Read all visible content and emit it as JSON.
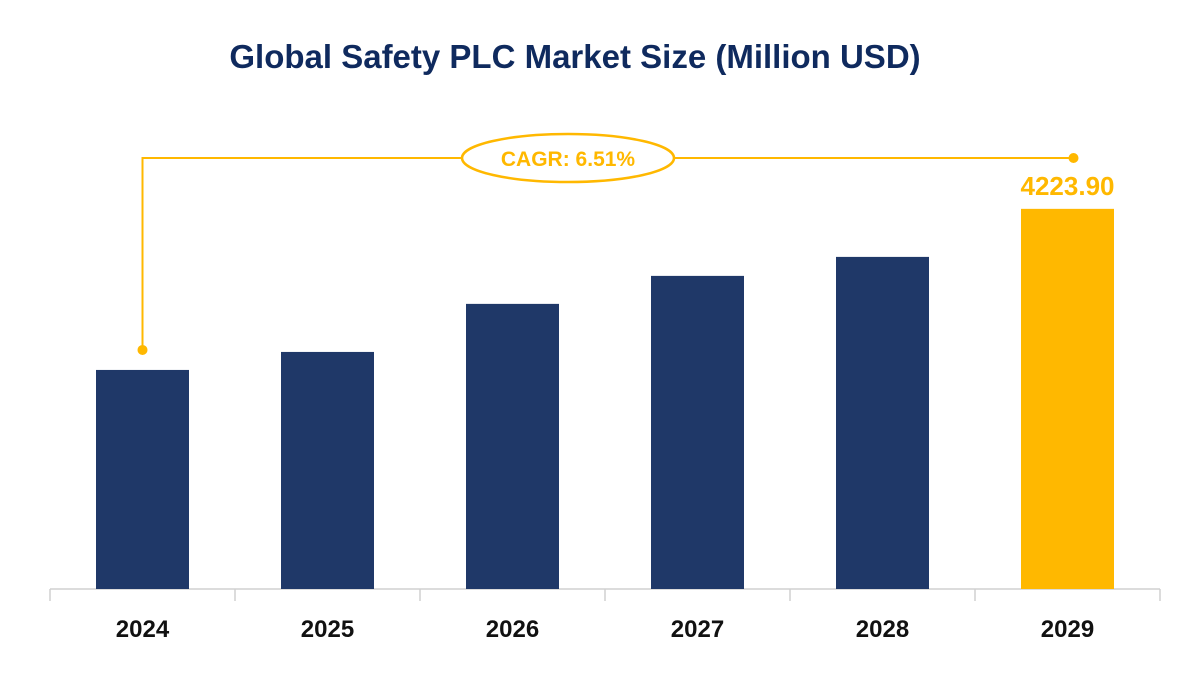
{
  "chart_data": {
    "type": "bar",
    "title": "Global Safety PLC Market Size (Million USD)",
    "categories": [
      "2024",
      "2025",
      "2026",
      "2027",
      "2028",
      "2029"
    ],
    "values": [
      2434,
      2634,
      3168,
      3479,
      3690,
      4223.9
    ],
    "data_labels": {
      "2029": "4223.90"
    },
    "annotation": "CAGR: 6.51%",
    "xlabel": "",
    "ylabel": "",
    "ylim": [
      0,
      5000
    ],
    "grid": false,
    "y_axis_visible": false,
    "colors": {
      "bar": "#1f3868",
      "highlight": "#ffb800",
      "title": "#0f2a5e",
      "axis": "#d0d0d0"
    }
  }
}
